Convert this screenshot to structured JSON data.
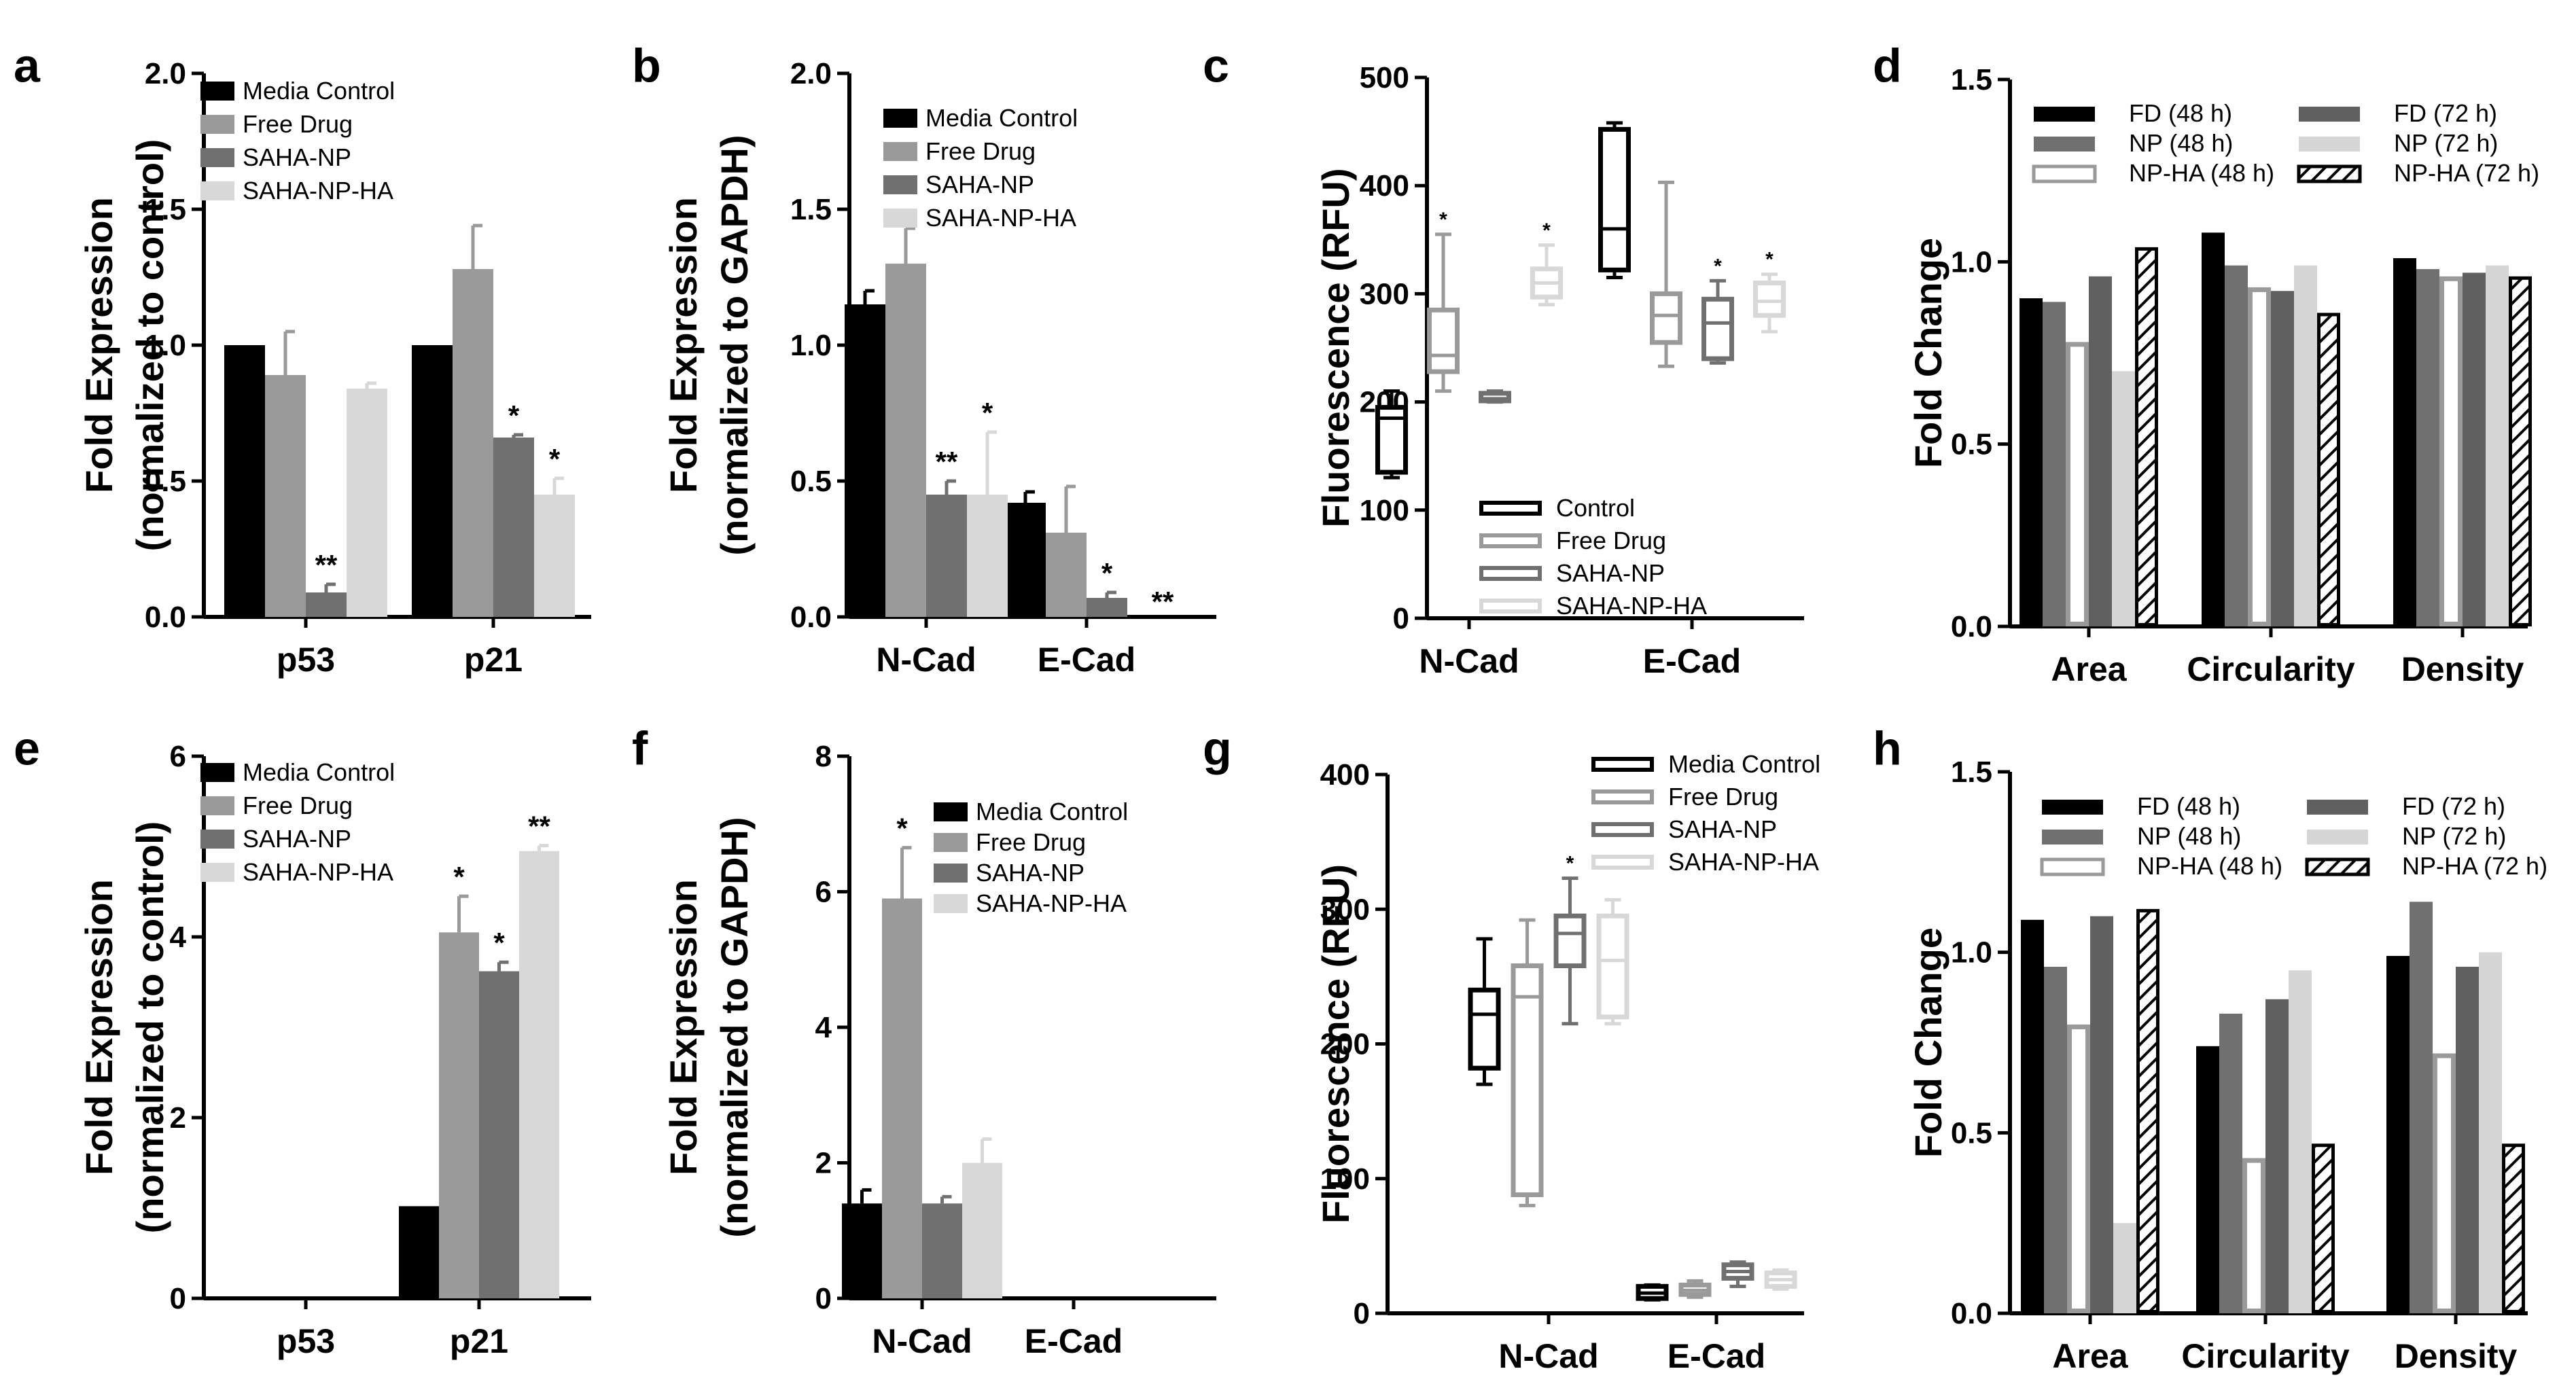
{
  "colors": {
    "c1": "#000000",
    "c2": "#9a9a9a",
    "c3": "#707070",
    "c4": "#d8d8d8",
    "c5": "#606060",
    "c6": "#d6d6d6"
  },
  "chart_data": [
    {
      "id": "a",
      "type": "bar",
      "panel_label": "a",
      "ylabel": [
        "Fold  Expression",
        "(normalized to control)"
      ],
      "ylim": [
        0,
        2.0
      ],
      "yticks": [
        "0.0",
        "0.5",
        "1.0",
        "1.5",
        "2.0"
      ],
      "categories": [
        "p53",
        "p21"
      ],
      "series": [
        {
          "name": "Media Control",
          "values": [
            1.0,
            1.0
          ],
          "errors": [
            0,
            0
          ]
        },
        {
          "name": "Free Drug",
          "values": [
            0.89,
            1.28
          ],
          "errors": [
            0.16,
            0.16
          ]
        },
        {
          "name": "SAHA-NP",
          "values": [
            0.09,
            0.66
          ],
          "errors": [
            0.03,
            0.01
          ]
        },
        {
          "name": "SAHA-NP-HA",
          "values": [
            0.84,
            0.45
          ],
          "errors": [
            0.02,
            0.06
          ]
        }
      ],
      "annotations": [
        {
          "text": "**",
          "category": 0,
          "series": 2
        },
        {
          "text": "*",
          "category": 1,
          "series": 2
        },
        {
          "text": "*",
          "category": 1,
          "series": 3
        }
      ]
    },
    {
      "id": "b",
      "type": "bar",
      "panel_label": "b",
      "ylabel": [
        "Fold  Expression",
        "(normalized to GAPDH)"
      ],
      "ylim": [
        0,
        2.0
      ],
      "yticks": [
        "0.0",
        "0.5",
        "1.0",
        "1.5",
        "2.0"
      ],
      "categories": [
        "N-Cad",
        "E-Cad"
      ],
      "series": [
        {
          "name": "Media Control",
          "values": [
            1.15,
            0.42
          ],
          "errors": [
            0.05,
            0.04
          ]
        },
        {
          "name": "Free Drug",
          "values": [
            1.3,
            0.31
          ],
          "errors": [
            0.13,
            0.17
          ]
        },
        {
          "name": "SAHA-NP",
          "values": [
            0.45,
            0.07
          ],
          "errors": [
            0.05,
            0.02
          ]
        },
        {
          "name": "SAHA-NP-HA",
          "values": [
            0.45,
            0.0
          ],
          "errors": [
            0.23,
            0
          ]
        }
      ],
      "annotations": [
        {
          "text": "**",
          "category": 0,
          "series": 2
        },
        {
          "text": "*",
          "category": 0,
          "series": 3
        },
        {
          "text": "*",
          "category": 1,
          "series": 2
        },
        {
          "text": "**",
          "category": 1,
          "series": 3
        }
      ]
    },
    {
      "id": "c",
      "type": "box",
      "panel_label": "c",
      "ylabel": [
        "Fluorescence (RFU)"
      ],
      "ylim": [
        0,
        500
      ],
      "yticks": [
        "0",
        "100",
        "200",
        "300",
        "400",
        "500"
      ],
      "categories": [
        "N-Cad",
        "E-Cad"
      ],
      "series_names": [
        "Control",
        "Free Drug",
        "SAHA-NP",
        "SAHA-NP-HA"
      ],
      "boxes": [
        [
          {
            "min": 130,
            "q1": 135,
            "median": 185,
            "q3": 195,
            "max": 210
          },
          {
            "min": 210,
            "q1": 228,
            "median": 243,
            "q3": 285,
            "max": 355
          },
          {
            "min": 200,
            "q1": 201,
            "median": 203,
            "q3": 208,
            "max": 210
          },
          {
            "min": 290,
            "q1": 297,
            "median": 310,
            "q3": 323,
            "max": 345
          }
        ],
        [
          {
            "min": 315,
            "q1": 322,
            "median": 360,
            "q3": 452,
            "max": 458
          },
          {
            "min": 233,
            "q1": 255,
            "median": 280,
            "q3": 300,
            "max": 403
          },
          {
            "min": 236,
            "q1": 240,
            "median": 273,
            "q3": 295,
            "max": 312
          },
          {
            "min": 265,
            "q1": 280,
            "median": 293,
            "q3": 310,
            "max": 318
          }
        ]
      ],
      "annotations": [
        {
          "text": "*",
          "category": 0,
          "series": 1
        },
        {
          "text": "*",
          "category": 0,
          "series": 3
        },
        {
          "text": "*",
          "category": 1,
          "series": 2
        },
        {
          "text": "*",
          "category": 1,
          "series": 3
        }
      ]
    },
    {
      "id": "d",
      "type": "bar",
      "panel_label": "d",
      "ylabel": [
        "Fold Change"
      ],
      "ylim": [
        0,
        1.5
      ],
      "yticks": [
        "0.0",
        "0.5",
        "1.0",
        "1.5"
      ],
      "categories": [
        "Area",
        "Circularity",
        "Density"
      ],
      "series": [
        {
          "name": "FD (48 h)",
          "values": [
            0.9,
            1.08,
            1.01
          ]
        },
        {
          "name": "NP (48 h)",
          "values": [
            0.89,
            0.99,
            0.98
          ]
        },
        {
          "name": "NP-HA (48 h)",
          "values": [
            0.78,
            0.93,
            0.96
          ]
        },
        {
          "name": "FD (72 h)",
          "values": [
            0.96,
            0.92,
            0.97
          ]
        },
        {
          "name": "NP (72 h)",
          "values": [
            0.7,
            0.99,
            0.99
          ]
        },
        {
          "name": "NP-HA (72 h)",
          "values": [
            1.04,
            0.86,
            0.96
          ]
        }
      ]
    },
    {
      "id": "e",
      "type": "bar",
      "panel_label": "e",
      "ylabel": [
        "Fold  Expression",
        "(normalized to control)"
      ],
      "ylim": [
        0,
        6
      ],
      "yticks": [
        "0",
        "2",
        "4",
        "6"
      ],
      "categories": [
        "p53",
        "p21"
      ],
      "series": [
        {
          "name": "Media Control",
          "values": [
            0,
            1.02
          ],
          "errors": [
            0,
            0
          ]
        },
        {
          "name": "Free Drug",
          "values": [
            0,
            4.05
          ],
          "errors": [
            0,
            0.4
          ]
        },
        {
          "name": "SAHA-NP",
          "values": [
            0,
            3.62
          ],
          "errors": [
            0,
            0.1
          ]
        },
        {
          "name": "SAHA-NP-HA",
          "values": [
            0,
            4.95
          ],
          "errors": [
            0,
            0.06
          ]
        }
      ],
      "annotations": [
        {
          "text": "*",
          "category": 1,
          "series": 1
        },
        {
          "text": "*",
          "category": 1,
          "series": 2
        },
        {
          "text": "**",
          "category": 1,
          "series": 3
        }
      ]
    },
    {
      "id": "f",
      "type": "bar",
      "panel_label": "f",
      "ylabel": [
        "Fold  Expression",
        "(normalized to GAPDH)"
      ],
      "ylim": [
        0,
        8
      ],
      "yticks": [
        "0",
        "2",
        "4",
        "6",
        "8"
      ],
      "categories": [
        "N-Cad",
        "E-Cad"
      ],
      "series": [
        {
          "name": "Media Control",
          "values": [
            1.4,
            0
          ],
          "errors": [
            0.2,
            0
          ]
        },
        {
          "name": "Free Drug",
          "values": [
            5.9,
            0
          ],
          "errors": [
            0.75,
            0
          ]
        },
        {
          "name": "SAHA-NP",
          "values": [
            1.4,
            0
          ],
          "errors": [
            0.1,
            0
          ]
        },
        {
          "name": "SAHA-NP-HA",
          "values": [
            2.0,
            0
          ],
          "errors": [
            0.35,
            0
          ]
        }
      ],
      "annotations": [
        {
          "text": "*",
          "category": 0,
          "series": 1
        }
      ]
    },
    {
      "id": "g",
      "type": "box",
      "panel_label": "g",
      "ylabel": [
        "Fluorescence (RFU)"
      ],
      "ylim": [
        0,
        400
      ],
      "yticks": [
        "0",
        "100",
        "200",
        "300",
        "400"
      ],
      "categories": [
        "N-Cad",
        "E-Cad"
      ],
      "series_names": [
        "Media Control",
        "Free Drug",
        "SAHA-NP",
        "SAHA-NP-HA"
      ],
      "boxes": [
        [
          {
            "min": 170,
            "q1": 182,
            "median": 222,
            "q3": 240,
            "max": 278
          },
          {
            "min": 80,
            "q1": 88,
            "median": 235,
            "q3": 258,
            "max": 292
          },
          {
            "min": 215,
            "q1": 258,
            "median": 282,
            "q3": 295,
            "max": 323
          },
          {
            "min": 215,
            "q1": 220,
            "median": 262,
            "q3": 295,
            "max": 307
          }
        ],
        [
          {
            "min": 10,
            "q1": 11,
            "median": 15,
            "q3": 20,
            "max": 21
          },
          {
            "min": 12,
            "q1": 14,
            "median": 17,
            "q3": 21,
            "max": 24
          },
          {
            "min": 20,
            "q1": 26,
            "median": 31,
            "q3": 36,
            "max": 38
          },
          {
            "min": 18,
            "q1": 20,
            "median": 25,
            "q3": 30,
            "max": 32
          }
        ]
      ],
      "annotations": [
        {
          "text": "*",
          "category": 0,
          "series": 2
        }
      ]
    },
    {
      "id": "h",
      "type": "bar",
      "panel_label": "h",
      "ylabel": [
        "Fold Change"
      ],
      "ylim": [
        0,
        1.5
      ],
      "yticks": [
        "0.0",
        "0.5",
        "1.0",
        "1.5"
      ],
      "categories": [
        "Area",
        "Circularity",
        "Density"
      ],
      "series": [
        {
          "name": "FD (48 h)",
          "values": [
            1.09,
            0.74,
            0.99
          ]
        },
        {
          "name": "NP (48 h)",
          "values": [
            0.96,
            0.83,
            1.14
          ]
        },
        {
          "name": "NP-HA (48 h)",
          "values": [
            0.8,
            0.43,
            0.72
          ]
        },
        {
          "name": "FD (72 h)",
          "values": [
            1.1,
            0.87,
            0.96
          ]
        },
        {
          "name": "NP (72 h)",
          "values": [
            0.25,
            0.95,
            1.0
          ]
        },
        {
          "name": "NP-HA (72 h)",
          "values": [
            1.12,
            0.47,
            0.47
          ]
        }
      ]
    }
  ]
}
